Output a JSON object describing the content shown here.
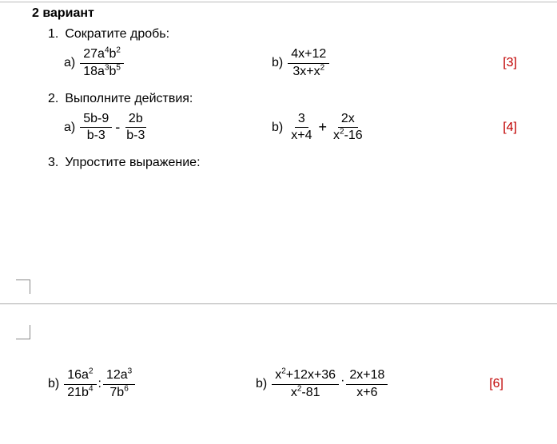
{
  "variant": "2 вариант",
  "problems": {
    "p1": {
      "num": "1.",
      "title": "Сократите дробь:",
      "a": {
        "letter": "a)",
        "num": "27a<sup>4</sup>b<sup>2</sup>",
        "den": "18a<sup>3</sup>b<sup>5</sup>"
      },
      "b": {
        "letter": "b)",
        "num": "4x+12",
        "den": "3x+x<sup>2</sup>"
      },
      "points": "[3]"
    },
    "p2": {
      "num": "2.",
      "title": "Выполните действия:",
      "a": {
        "letter": "a)",
        "f1": {
          "num": "5b-9",
          "den": "b-3"
        },
        "op": "-",
        "f2": {
          "num": "2b",
          "den": "b-3"
        }
      },
      "b": {
        "letter": "b)",
        "f1": {
          "num": "3",
          "den": "x+4"
        },
        "op": "+",
        "f2": {
          "num": "2x",
          "den": "x<sup>2</sup>-16"
        }
      },
      "points": "[4]"
    },
    "p3": {
      "num": "3.",
      "title": "Упростите выражение:",
      "a": {
        "letter": "b)",
        "f1": {
          "num": "16a<sup>2</sup>",
          "den": "21b<sup>4</sup>"
        },
        "op": ":",
        "f2": {
          "num": "12a<sup>3</sup>",
          "den": "7b<sup>6</sup>"
        }
      },
      "b": {
        "letter": "b)",
        "f1": {
          "num": "x<sup>2</sup>+12x+36",
          "den": "x<sup>2</sup>-81"
        },
        "op": "·",
        "f2": {
          "num": "2x+18",
          "den": "x+6"
        }
      },
      "points": "[6]"
    }
  },
  "colors": {
    "text": "#000000",
    "points": "#c00000",
    "background": "#ffffff",
    "border": "#aaaaaa"
  }
}
